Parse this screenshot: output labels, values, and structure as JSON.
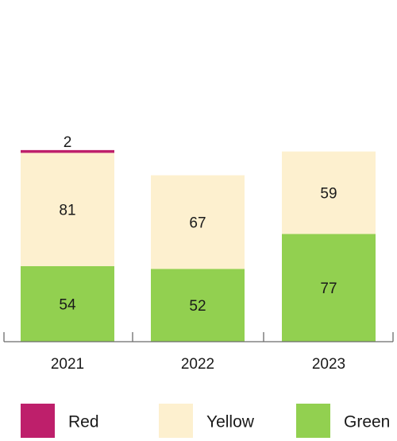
{
  "chart_data": {
    "type": "bar",
    "stacked": true,
    "categories": [
      "2021",
      "2022",
      "2023"
    ],
    "series": [
      {
        "name": "Green",
        "color": "#92d050",
        "values": [
          54,
          52,
          77
        ]
      },
      {
        "name": "Yellow",
        "color": "#fdf0cf",
        "values": [
          81,
          67,
          59
        ]
      },
      {
        "name": "Red",
        "color": "#be1f6b",
        "values": [
          2,
          0,
          0
        ]
      }
    ],
    "legend_order": [
      "Red",
      "Yellow",
      "Green"
    ],
    "legend_position": "bottom",
    "grid": false
  }
}
